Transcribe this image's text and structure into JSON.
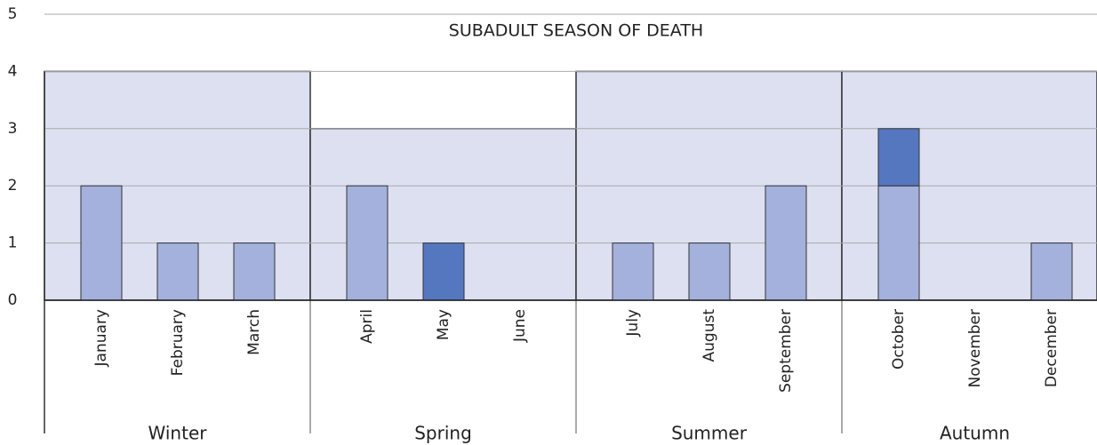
{
  "chart_data": {
    "type": "stacked-bar",
    "title": "SUBADULT SEASON OF DEATH",
    "categories": [
      "January",
      "February",
      "March",
      "April",
      "May",
      "June",
      "July",
      "August",
      "September",
      "October",
      "November",
      "December"
    ],
    "series": [
      {
        "color": "#a3b1dc",
        "values": [
          2,
          1,
          1,
          2,
          0,
          0,
          1,
          1,
          2,
          2,
          0,
          1
        ]
      },
      {
        "color": "#5577bf",
        "values": [
          0,
          0,
          0,
          0,
          1,
          0,
          0,
          0,
          0,
          1,
          0,
          0
        ]
      }
    ],
    "groups": [
      {
        "label": "Winter",
        "value": 4
      },
      {
        "label": "Spring",
        "value": 3
      },
      {
        "label": "Summer",
        "value": 4
      },
      {
        "label": "Autumn",
        "value": 4
      }
    ],
    "group_color": "#dde0f1",
    "ylim": [
      0,
      5
    ],
    "yticks": [
      0,
      1,
      2,
      3,
      4,
      5
    ],
    "grid": true
  }
}
